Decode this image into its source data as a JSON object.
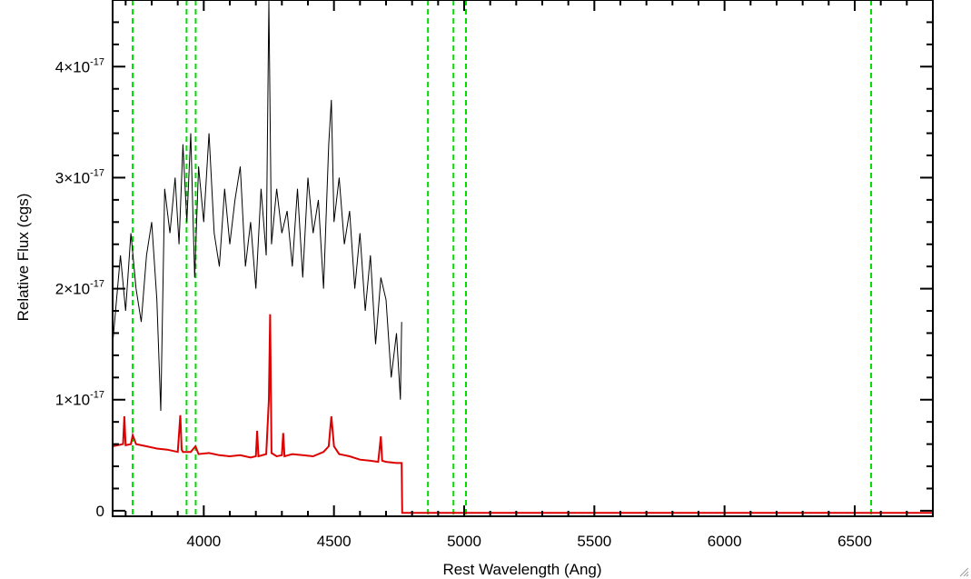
{
  "chart_data": {
    "type": "line",
    "xlabel": "Rest Wavelength (Ang)",
    "ylabel": "Relative Flux (cgs)",
    "xlim": [
      3650,
      6800
    ],
    "ylim": [
      -5e-19,
      4.6e-17
    ],
    "x_ticks": [
      {
        "value": 4000,
        "label": "4000"
      },
      {
        "value": 4500,
        "label": "4500"
      },
      {
        "value": 5000,
        "label": "5000"
      },
      {
        "value": 5500,
        "label": "5500"
      },
      {
        "value": 6000,
        "label": "6000"
      },
      {
        "value": 6500,
        "label": "6500"
      }
    ],
    "y_ticks": [
      {
        "value": 0,
        "label": "0",
        "exp": ""
      },
      {
        "value": 1e-17,
        "label": "1×10",
        "exp": "-17"
      },
      {
        "value": 2e-17,
        "label": "2×10",
        "exp": "-17"
      },
      {
        "value": 3e-17,
        "label": "3×10",
        "exp": "-17"
      },
      {
        "value": 4e-17,
        "label": "4×10",
        "exp": "-17"
      }
    ],
    "reference_lines": {
      "color": "#00dd00",
      "style": "dashed",
      "x": [
        3727,
        3934,
        3969,
        4861,
        4959,
        5007,
        6563
      ]
    },
    "series": [
      {
        "color": "#000000",
        "x": [
          3650,
          3680,
          3700,
          3720,
          3740,
          3760,
          3780,
          3800,
          3820,
          3835,
          3850,
          3870,
          3890,
          3905,
          3920,
          3935,
          3950,
          3965,
          3980,
          4000,
          4020,
          4040,
          4060,
          4080,
          4100,
          4120,
          4140,
          4160,
          4180,
          4200,
          4220,
          4240,
          4250,
          4260,
          4280,
          4300,
          4320,
          4340,
          4360,
          4380,
          4400,
          4420,
          4440,
          4460,
          4480,
          4490,
          4500,
          4520,
          4540,
          4560,
          4580,
          4600,
          4620,
          4640,
          4660,
          4680,
          4700,
          4720,
          4740,
          4755,
          4760
        ],
        "y": [
          1.5e-17,
          2.3e-17,
          1.8e-17,
          2.5e-17,
          2e-17,
          1.7e-17,
          2.3e-17,
          2.6e-17,
          1.9e-17,
          9e-18,
          2.9e-17,
          2.5e-17,
          3e-17,
          2.4e-17,
          3.3e-17,
          2.6e-17,
          3.4e-17,
          2.1e-17,
          3.1e-17,
          2.6e-17,
          3.4e-17,
          2.5e-17,
          2.2e-17,
          2.9e-17,
          2.4e-17,
          2.8e-17,
          3.1e-17,
          2.2e-17,
          2.6e-17,
          2e-17,
          2.9e-17,
          2.3e-17,
          4.6e-17,
          2.4e-17,
          2.9e-17,
          2.5e-17,
          2.7e-17,
          2.2e-17,
          2.9e-17,
          2.1e-17,
          3e-17,
          2.5e-17,
          2.8e-17,
          2e-17,
          3.3e-17,
          3.7e-17,
          2.6e-17,
          3e-17,
          2.4e-17,
          2.7e-17,
          2e-17,
          2.5e-17,
          1.8e-17,
          2.3e-17,
          1.5e-17,
          2.1e-17,
          1.9e-17,
          1.2e-17,
          1.6e-17,
          1e-17,
          1.7e-17
        ]
      },
      {
        "color": "#dd0000",
        "x": [
          3650,
          3690,
          3695,
          3700,
          3720,
          3727,
          3740,
          3780,
          3820,
          3860,
          3900,
          3910,
          3915,
          3920,
          3950,
          3968,
          3980,
          4020,
          4060,
          4100,
          4140,
          4180,
          4200,
          4205,
          4210,
          4240,
          4250,
          4255,
          4260,
          4280,
          4300,
          4305,
          4310,
          4340,
          4380,
          4420,
          4460,
          4480,
          4490,
          4500,
          4520,
          4560,
          4600,
          4640,
          4670,
          4680,
          4685,
          4700,
          4740,
          4760,
          4762,
          4765,
          5000,
          5500,
          6000,
          6500,
          6800
        ],
        "y": [
          5.8e-18,
          6e-18,
          8.5e-18,
          5.9e-18,
          6e-18,
          6.8e-18,
          6e-18,
          5.8e-18,
          5.6e-18,
          5.5e-18,
          5.3e-18,
          8.6e-18,
          5.5e-18,
          5.3e-18,
          5.3e-18,
          5.8e-18,
          5.1e-18,
          5.2e-18,
          5e-18,
          4.9e-18,
          5e-18,
          4.8e-18,
          4.9e-18,
          7.2e-18,
          4.9e-18,
          5.1e-18,
          1e-17,
          1.77e-17,
          5.2e-18,
          4.9e-18,
          5e-18,
          7e-18,
          4.9e-18,
          5.1e-18,
          5e-18,
          4.9e-18,
          5.3e-18,
          5.8e-18,
          8.5e-18,
          5.8e-18,
          5.1e-18,
          4.9e-18,
          4.6e-18,
          4.5e-18,
          4.4e-18,
          6.7e-18,
          4.5e-18,
          4.4e-18,
          4.3e-18,
          4.3e-18,
          -2e-19,
          -2e-19,
          -2e-19,
          -2e-19,
          -2e-19,
          -2e-19,
          -2e-19
        ]
      }
    ]
  }
}
